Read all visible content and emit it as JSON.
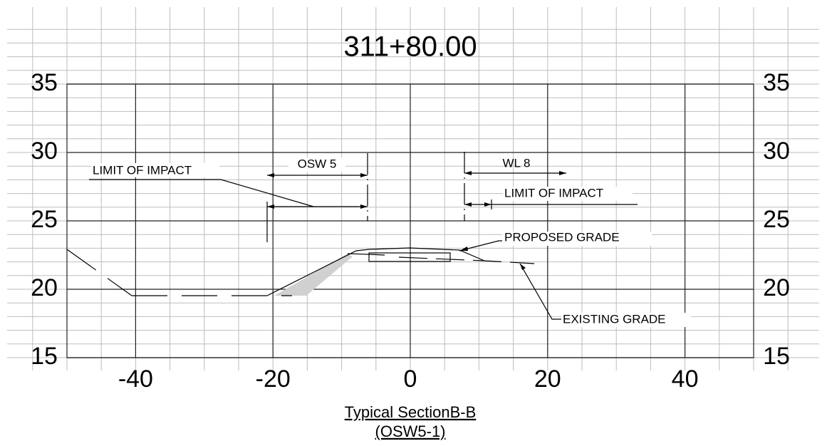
{
  "title": "311+80.00",
  "x_axis": {
    "lim": [
      -50,
      50
    ],
    "ticks": [
      -40,
      -20,
      0,
      20,
      40
    ]
  },
  "y_axis": {
    "lim": [
      15,
      35
    ],
    "ticks": [
      15,
      20,
      25,
      30,
      35
    ]
  },
  "annotations": [
    "LIMIT OF IMPACT",
    "OSW 5",
    "WL 8",
    "LIMIT OF IMPACT",
    "PROPOSED GRADE",
    "EXISTING GRADE"
  ],
  "caption": [
    "Typical SectionB-B",
    "(OSW5-1)"
  ]
}
